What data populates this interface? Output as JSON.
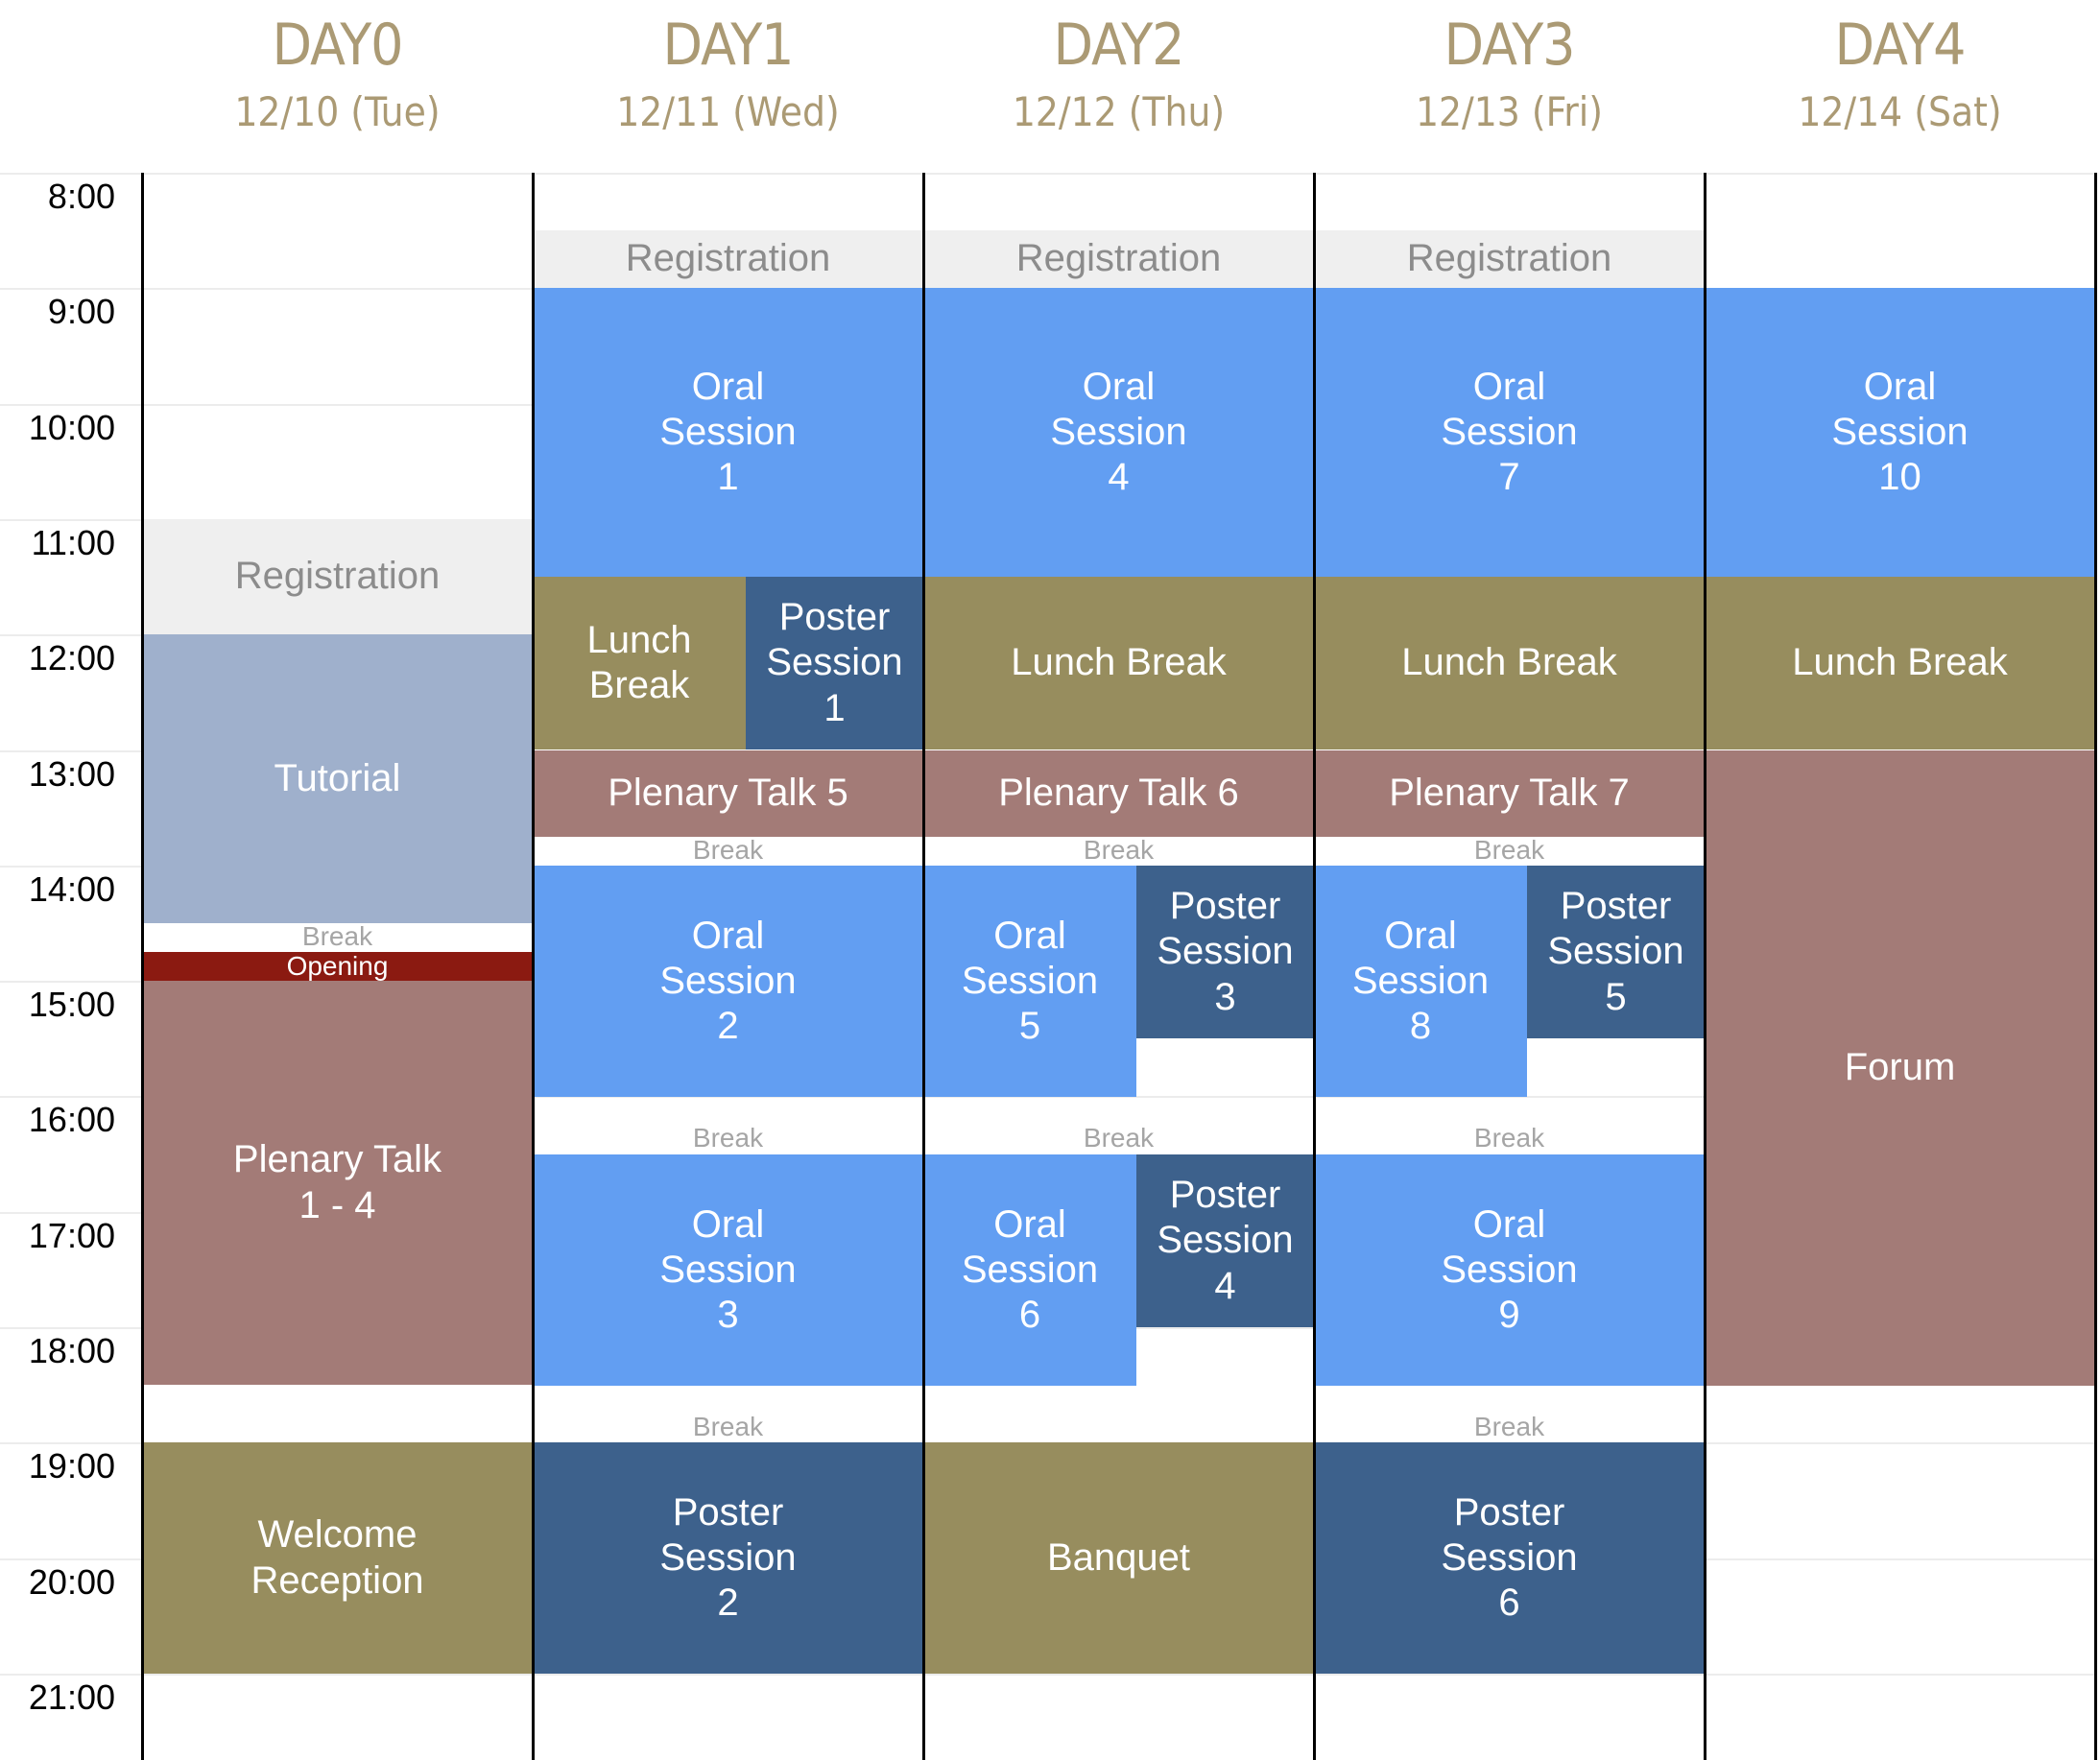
{
  "days": [
    {
      "name": "DAY0",
      "date": "12/10 (Tue)"
    },
    {
      "name": "DAY1",
      "date": "12/11 (Wed)"
    },
    {
      "name": "DAY2",
      "date": "12/12 (Thu)"
    },
    {
      "name": "DAY3",
      "date": "12/13 (Fri)"
    },
    {
      "name": "DAY4",
      "date": "12/14 (Sat)"
    }
  ],
  "time_labels": [
    "8:00",
    "9:00",
    "10:00",
    "11:00",
    "12:00",
    "13:00",
    "14:00",
    "15:00",
    "16:00",
    "17:00",
    "18:00",
    "19:00",
    "20:00",
    "21:00"
  ],
  "colors": {
    "registration": "#efefef",
    "oral": "#629ef2",
    "poster": "#3d618c",
    "lunch": "#978d5e",
    "plenary": "#a37b77",
    "tutorial": "#9fb0cc",
    "opening": "#8b1a11",
    "header_text": "#ab9a74"
  },
  "events": [
    {
      "day": 0,
      "start": "11:00",
      "end": "12:00",
      "label": "Registration",
      "kind": "registration"
    },
    {
      "day": 0,
      "start": "12:00",
      "end": "14:30",
      "label": "Tutorial",
      "kind": "tutorial"
    },
    {
      "day": 0,
      "start": "14:30",
      "end": "14:45",
      "label": "Break",
      "kind": "break"
    },
    {
      "day": 0,
      "start": "14:45",
      "end": "15:00",
      "label": "Opening",
      "kind": "opening"
    },
    {
      "day": 0,
      "start": "15:00",
      "end": "18:30",
      "label": "Plenary Talk\n1 - 4",
      "kind": "plenary"
    },
    {
      "day": 0,
      "start": "19:00",
      "end": "21:00",
      "label": "Welcome\nReception",
      "kind": "social"
    },
    {
      "day": 1,
      "start": "8:30",
      "end": "9:00",
      "label": "Registration",
      "kind": "registration"
    },
    {
      "day": 1,
      "start": "9:00",
      "end": "11:30",
      "label": "Oral\nSession\n1",
      "kind": "oral"
    },
    {
      "day": 1,
      "start": "11:30",
      "end": "13:00",
      "label": "Lunch\nBreak",
      "kind": "lunch",
      "slot": "left"
    },
    {
      "day": 1,
      "start": "11:30",
      "end": "13:00",
      "label": "Poster\nSession\n1",
      "kind": "poster",
      "slot": "right"
    },
    {
      "day": 1,
      "start": "13:00",
      "end": "13:45",
      "label": "Plenary Talk 5",
      "kind": "plenary"
    },
    {
      "day": 1,
      "start": "13:45",
      "end": "14:00",
      "label": "Break",
      "kind": "break"
    },
    {
      "day": 1,
      "start": "14:00",
      "end": "16:00",
      "label": "Oral\nSession\n2",
      "kind": "oral"
    },
    {
      "day": 1,
      "start": "16:00",
      "end": "16:30",
      "label": "Break",
      "kind": "break"
    },
    {
      "day": 1,
      "start": "16:30",
      "end": "18:30",
      "label": "Oral\nSession\n3",
      "kind": "oral"
    },
    {
      "day": 1,
      "start": "18:30",
      "end": "19:00",
      "label": "Break",
      "kind": "break"
    },
    {
      "day": 1,
      "start": "19:00",
      "end": "21:00",
      "label": "Poster\nSession\n2",
      "kind": "poster"
    },
    {
      "day": 2,
      "start": "8:30",
      "end": "9:00",
      "label": "Registration",
      "kind": "registration"
    },
    {
      "day": 2,
      "start": "9:00",
      "end": "11:30",
      "label": "Oral\nSession\n4",
      "kind": "oral"
    },
    {
      "day": 2,
      "start": "11:30",
      "end": "13:00",
      "label": "Lunch Break",
      "kind": "lunch"
    },
    {
      "day": 2,
      "start": "13:00",
      "end": "13:45",
      "label": "Plenary Talk 6",
      "kind": "plenary"
    },
    {
      "day": 2,
      "start": "13:45",
      "end": "14:00",
      "label": "Break",
      "kind": "break"
    },
    {
      "day": 2,
      "start": "14:00",
      "end": "16:00",
      "label": "Oral\nSession\n5",
      "kind": "oral",
      "slot": "left"
    },
    {
      "day": 2,
      "start": "14:00",
      "end": "15:30",
      "label": "Poster\nSession\n3",
      "kind": "poster",
      "slot": "right"
    },
    {
      "day": 2,
      "start": "16:00",
      "end": "16:30",
      "label": "Break",
      "kind": "break"
    },
    {
      "day": 2,
      "start": "16:30",
      "end": "18:30",
      "label": "Oral\nSession\n6",
      "kind": "oral",
      "slot": "left"
    },
    {
      "day": 2,
      "start": "16:30",
      "end": "18:00",
      "label": "Poster\nSession\n4",
      "kind": "poster",
      "slot": "right"
    },
    {
      "day": 2,
      "start": "19:00",
      "end": "21:00",
      "label": "Banquet",
      "kind": "social"
    },
    {
      "day": 3,
      "start": "8:30",
      "end": "9:00",
      "label": "Registration",
      "kind": "registration"
    },
    {
      "day": 3,
      "start": "9:00",
      "end": "11:30",
      "label": "Oral\nSession\n7",
      "kind": "oral"
    },
    {
      "day": 3,
      "start": "11:30",
      "end": "13:00",
      "label": "Lunch Break",
      "kind": "lunch"
    },
    {
      "day": 3,
      "start": "13:00",
      "end": "13:45",
      "label": "Plenary Talk 7",
      "kind": "plenary"
    },
    {
      "day": 3,
      "start": "13:45",
      "end": "14:00",
      "label": "Break",
      "kind": "break"
    },
    {
      "day": 3,
      "start": "14:00",
      "end": "16:00",
      "label": "Oral\nSession\n8",
      "kind": "oral",
      "slot": "left"
    },
    {
      "day": 3,
      "start": "14:00",
      "end": "15:30",
      "label": "Poster\nSession\n5",
      "kind": "poster",
      "slot": "right"
    },
    {
      "day": 3,
      "start": "16:00",
      "end": "16:30",
      "label": "Break",
      "kind": "break"
    },
    {
      "day": 3,
      "start": "16:30",
      "end": "18:30",
      "label": "Oral\nSession\n9",
      "kind": "oral"
    },
    {
      "day": 3,
      "start": "18:30",
      "end": "19:00",
      "label": "Break",
      "kind": "break"
    },
    {
      "day": 3,
      "start": "19:00",
      "end": "21:00",
      "label": "Poster\nSession\n6",
      "kind": "poster"
    },
    {
      "day": 4,
      "start": "9:00",
      "end": "11:30",
      "label": "Oral\nSession\n10",
      "kind": "oral"
    },
    {
      "day": 4,
      "start": "11:30",
      "end": "13:00",
      "label": "Lunch Break",
      "kind": "lunch"
    },
    {
      "day": 4,
      "start": "13:00",
      "end": "18:30",
      "label": "Forum",
      "kind": "forum"
    }
  ]
}
